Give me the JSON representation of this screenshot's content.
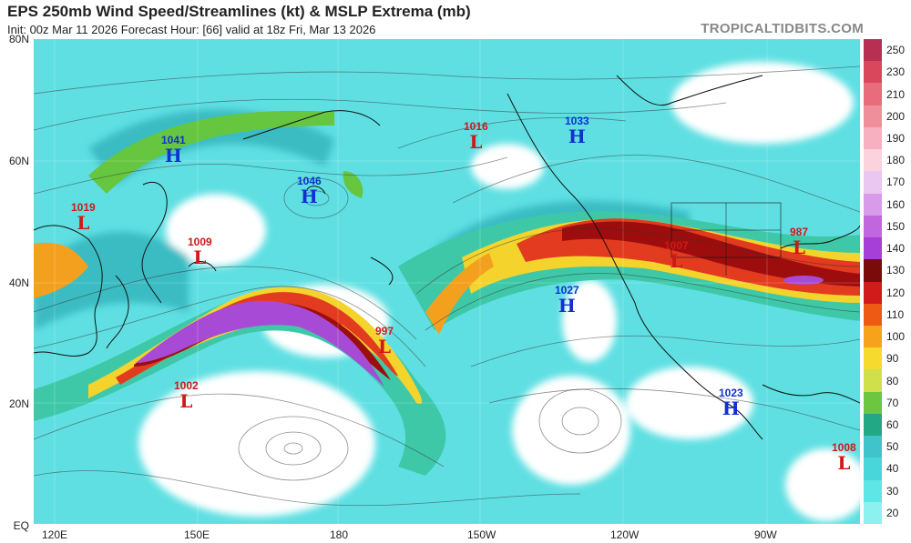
{
  "header": {
    "title": "EPS 250mb Wind Speed/Streamlines (kt) & MSLP Extrema (mb)",
    "subtitle": "Init: 00z Mar 11 2026   Forecast Hour: [66]   valid at 18z Fri, Mar 13 2026",
    "brand": "TROPICALTIDBITS.COM"
  },
  "axes": {
    "lat_labels": [
      "80N",
      "60N",
      "40N",
      "20N",
      "EQ"
    ],
    "lon_labels": [
      "120E",
      "150E",
      "180",
      "150W",
      "120W",
      "90W"
    ]
  },
  "colorbar": {
    "labels": [
      "250",
      "230",
      "210",
      "200",
      "190",
      "180",
      "170",
      "160",
      "150",
      "140",
      "130",
      "120",
      "110",
      "100",
      "90",
      "80",
      "70",
      "60",
      "50",
      "40",
      "30",
      "20"
    ],
    "colors": [
      "#b82f54",
      "#d9475c",
      "#e86c7b",
      "#f08f9c",
      "#f7b0c0",
      "#fbd3de",
      "#e9c7f0",
      "#d79be9",
      "#c067e0",
      "#a63fd8",
      "#7a0b0b",
      "#d11a1a",
      "#ee5a14",
      "#f8a21c",
      "#f6da2e",
      "#cfe04a",
      "#6cc63f",
      "#22a884",
      "#3fc5c9",
      "#48d6db",
      "#5ee6e6",
      "#8cf1ef"
    ]
  },
  "extrema": [
    {
      "type": "low",
      "value": "1019",
      "symbol": "L"
    },
    {
      "type": "high",
      "value": "1041",
      "symbol": "H"
    },
    {
      "type": "low",
      "value": "1009",
      "symbol": "L"
    },
    {
      "type": "high",
      "value": "1046",
      "symbol": "H"
    },
    {
      "type": "low",
      "value": "1002",
      "symbol": "L"
    },
    {
      "type": "low",
      "value": "997",
      "symbol": "L"
    },
    {
      "type": "low",
      "value": "1016",
      "symbol": "L"
    },
    {
      "type": "high",
      "value": "1033",
      "symbol": "H"
    },
    {
      "type": "high",
      "value": "1027",
      "symbol": "H"
    },
    {
      "type": "low",
      "value": "1007",
      "symbol": "L"
    },
    {
      "type": "low",
      "value": "987",
      "symbol": "L"
    },
    {
      "type": "high",
      "value": "1023",
      "symbol": "H"
    },
    {
      "type": "low",
      "value": "1008",
      "symbol": "L"
    }
  ]
}
